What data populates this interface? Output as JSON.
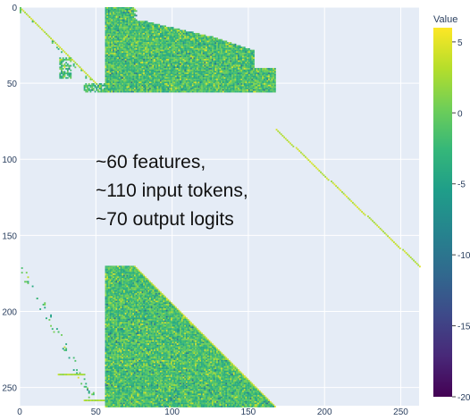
{
  "chart_data": {
    "type": "heatmap",
    "title": "",
    "xlabel": "",
    "ylabel": "",
    "xlim": [
      0,
      262
    ],
    "ylim": [
      262,
      0
    ],
    "x_ticks": [
      0,
      50,
      100,
      150,
      200,
      250
    ],
    "y_ticks": [
      0,
      50,
      100,
      150,
      200,
      250
    ],
    "colorbar": {
      "title": "Value",
      "range": [
        -20,
        6
      ],
      "ticks": [
        5,
        0,
        -5,
        -10,
        -15,
        -20
      ],
      "colorscale": [
        "#440154",
        "#482878",
        "#3e4989",
        "#31688e",
        "#26828e",
        "#1f9e89",
        "#35b779",
        "#6ece58",
        "#b5de2b",
        "#fde725"
      ]
    },
    "plot_background": "#e5ecf6",
    "annotation": [
      "~60 features,",
      "~110 input tokens,",
      "~70 output logits"
    ],
    "blocks": [
      {
        "region": "feature-feature",
        "shape": "diagonal",
        "rows": [
          0,
          55
        ],
        "cols": [
          0,
          55
        ]
      },
      {
        "region": "feature-input",
        "shape": "staircase",
        "rows": [
          0,
          55
        ],
        "cols": [
          56,
          165
        ]
      },
      {
        "region": "logit-diagonal",
        "shape": "diagonal",
        "rows": [
          80,
          170
        ],
        "cols": [
          168,
          262
        ]
      },
      {
        "region": "logit-feature",
        "shape": "sparse",
        "rows": [
          170,
          262
        ],
        "cols": [
          0,
          55
        ]
      },
      {
        "region": "logit-input",
        "shape": "triangle",
        "rows": [
          170,
          262
        ],
        "cols": [
          56,
          170
        ]
      }
    ]
  }
}
